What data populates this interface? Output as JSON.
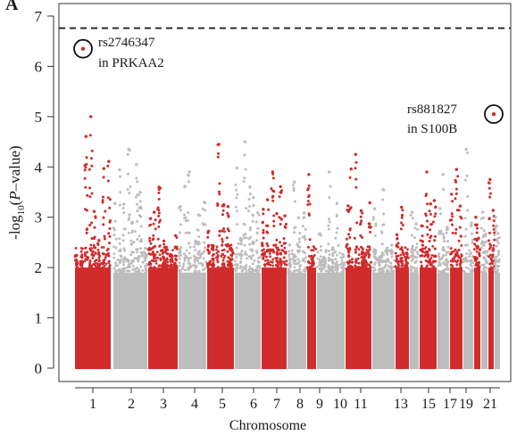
{
  "chart_data": {
    "type": "scatter",
    "panel_label": "A",
    "xlabel": "Chromosome",
    "ylabel": {
      "prefix": "-log",
      "subscript": "10",
      "middle": "(",
      "italic": "P",
      "suffix": "–value)"
    },
    "ylim": [
      0,
      7.3
    ],
    "yticks": [
      0,
      1,
      2,
      3,
      4,
      5,
      6,
      7
    ],
    "threshold": 6.76,
    "xtick_labels": [
      "1",
      "2",
      "3",
      "4",
      "5",
      "6",
      "7",
      "8",
      "9",
      "10",
      "11",
      "13",
      "15",
      "17",
      "19",
      "21"
    ],
    "colors": {
      "odd_chromosome": "#d12b2b",
      "even_chromosome": "#bdbdbd",
      "axis": "#333333"
    },
    "chromosomes": [
      {
        "chr": 1,
        "max": 5.0
      },
      {
        "chr": 2,
        "max": 4.35
      },
      {
        "chr": 3,
        "max": 3.6
      },
      {
        "chr": 4,
        "max": 3.9
      },
      {
        "chr": 5,
        "max": 4.45
      },
      {
        "chr": 6,
        "max": 4.5
      },
      {
        "chr": 7,
        "max": 3.9
      },
      {
        "chr": 8,
        "max": 3.7
      },
      {
        "chr": 9,
        "max": 3.85
      },
      {
        "chr": 10,
        "max": 3.9
      },
      {
        "chr": 11,
        "max": 4.25
      },
      {
        "chr": 12,
        "max": 3.55
      },
      {
        "chr": 13,
        "max": 3.2
      },
      {
        "chr": 14,
        "max": 3.1
      },
      {
        "chr": 15,
        "max": 3.9
      },
      {
        "chr": 16,
        "max": 3.85
      },
      {
        "chr": 17,
        "max": 3.95
      },
      {
        "chr": 18,
        "max": 4.35
      },
      {
        "chr": 19,
        "max": 3.0
      },
      {
        "chr": 20,
        "max": 3.1
      },
      {
        "chr": 21,
        "max": 3.75
      },
      {
        "chr": 22,
        "max": 3.0
      }
    ],
    "highlights": [
      {
        "chr": 1,
        "value": 6.35,
        "snp": "rs2746347",
        "gene": "in PRKAA2"
      },
      {
        "chr": 21,
        "value": 5.05,
        "snp": "rs881827",
        "gene": "in S100B"
      }
    ]
  }
}
